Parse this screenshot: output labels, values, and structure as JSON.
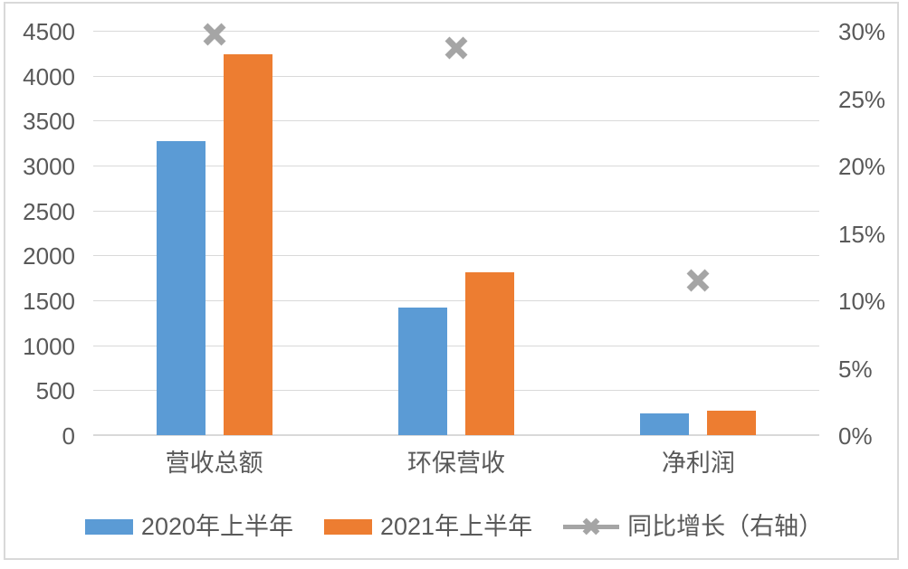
{
  "chart_data": {
    "type": "bar",
    "subtype": "grouped-bars-with-secondary-axis-x-markers",
    "title": "",
    "categories": [
      "营收总额",
      "环保营收",
      "净利润"
    ],
    "series": [
      {
        "name": "2020年上半年",
        "type": "bar",
        "axis": "left",
        "color": "#5B9BD5",
        "values": [
          3275,
          1415,
          240
        ]
      },
      {
        "name": "2021年上半年",
        "type": "bar",
        "axis": "left",
        "color": "#ED7D31",
        "values": [
          4240,
          1810,
          270
        ]
      },
      {
        "name": "同比增长（右轴）",
        "type": "x-marker",
        "axis": "right",
        "color": "#A5A5A5",
        "values": [
          29.7,
          28.7,
          11.5
        ],
        "unit": "%"
      }
    ],
    "left_axis": {
      "min": 0,
      "max": 4500,
      "step": 500,
      "tick_labels_top_to_bottom": [
        "4500",
        "4000",
        "3500",
        "3000",
        "2500",
        "2000",
        "1500",
        "1000",
        "500",
        "0"
      ]
    },
    "right_axis": {
      "min": 0,
      "max": 30,
      "step": 5,
      "unit": "%",
      "tick_labels_top_to_bottom": [
        "30%",
        "25%",
        "20%",
        "15%",
        "10%",
        "5%",
        "0%"
      ]
    },
    "grid": true,
    "legend_position": "bottom"
  },
  "colors": {
    "bar_2020": "#5B9BD5",
    "bar_2021": "#ED7D31",
    "marker": "#A5A5A5",
    "gridline": "#D9D9D9",
    "axis_text": "#595959",
    "card_border": "#D9D9D9",
    "background": "#FFFFFF"
  },
  "icons": {
    "x_marker": "x-marker-icon"
  }
}
